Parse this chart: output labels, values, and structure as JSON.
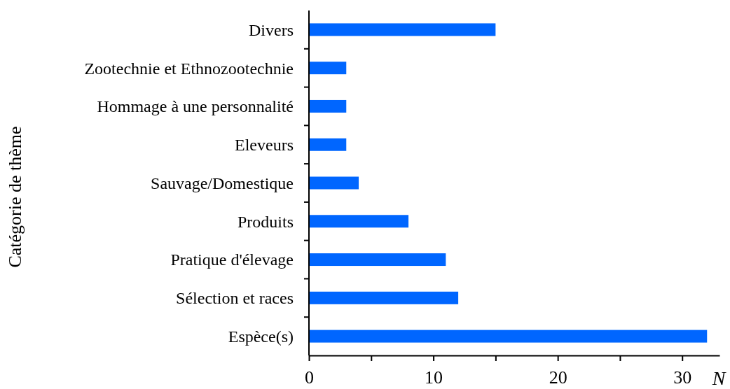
{
  "chart_data": {
    "type": "bar",
    "orientation": "horizontal",
    "ylabel": "Catégorie de thème",
    "xlabel": "N",
    "categories": [
      "Divers",
      "Zootechnie et Ethnozootechnie",
      "Hommage à une personnalité",
      "Eleveurs",
      "Sauvage/Domestique",
      "Produits",
      "Pratique d'élevage",
      "Sélection et races",
      "Espèce(s)"
    ],
    "values": [
      15,
      3,
      3,
      3,
      4,
      8,
      11,
      12,
      32
    ],
    "color": "#0066ff",
    "xlim": [
      0,
      33
    ],
    "xticks": [
      0,
      {
        "value": 5,
        "label": null
      },
      10,
      {
        "value": 15,
        "label": null
      },
      20,
      {
        "value": 25,
        "label": null
      },
      30
    ]
  }
}
